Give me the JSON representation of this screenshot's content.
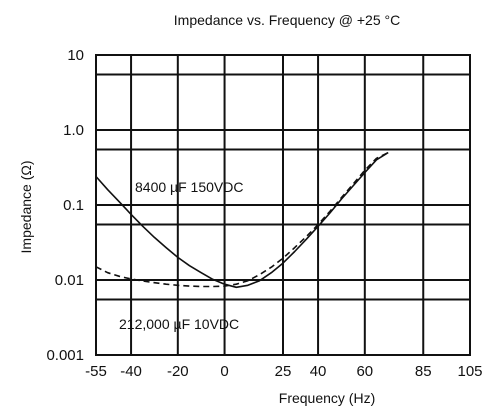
{
  "chart_data": {
    "type": "line",
    "title": "Impedance vs. Frequency @ +25 °C",
    "xlabel": "Frequency (Hz)",
    "ylabel": "Impedance (Ω)",
    "xlim": [
      -55,
      105
    ],
    "ylim": [
      0.001,
      10
    ],
    "y_scale": "log",
    "grid": true,
    "x_ticks": [
      -55,
      -40,
      -20,
      0,
      25,
      40,
      60,
      85,
      105
    ],
    "x_tick_labels": [
      "-55",
      "-40",
      "-20",
      "0",
      "25",
      "40",
      "60",
      "85",
      "105"
    ],
    "x_gridlines": [
      -40,
      -20,
      0,
      25,
      40,
      60,
      85,
      105
    ],
    "y_ticks": [
      0.001,
      0.01,
      0.1,
      1.0,
      10
    ],
    "y_tick_labels": [
      "0.001",
      "0.01",
      "0.1",
      "1.0",
      "10"
    ],
    "y_gridlines": [
      0.001,
      0.0055,
      0.01,
      0.055,
      0.1,
      0.55,
      1.0,
      5.5,
      10
    ],
    "series": [
      {
        "name": "8400 µF 150VDC",
        "style": "solid",
        "x": [
          -55,
          -50,
          -45,
          -40,
          -35,
          -30,
          -25,
          -20,
          -15,
          -10,
          -5,
          0,
          5,
          10,
          15,
          20,
          25,
          30,
          35,
          40,
          45,
          50,
          55,
          60,
          65,
          70
        ],
        "y": [
          0.24,
          0.16,
          0.11,
          0.075,
          0.052,
          0.037,
          0.027,
          0.02,
          0.0155,
          0.0125,
          0.0102,
          0.0088,
          0.008,
          0.0085,
          0.0098,
          0.0125,
          0.0168,
          0.024,
          0.035,
          0.052,
          0.078,
          0.12,
          0.18,
          0.27,
          0.4,
          0.5
        ]
      },
      {
        "name": "212,000 µF 10VDC",
        "style": "dashed",
        "x": [
          -55,
          -50,
          -45,
          -40,
          -35,
          -30,
          -25,
          -20,
          -15,
          -10,
          -5,
          0,
          5,
          10,
          15,
          20,
          25,
          30,
          35,
          40,
          45,
          50,
          55,
          60,
          65,
          70
        ],
        "y": [
          0.015,
          0.0125,
          0.0112,
          0.0103,
          0.0097,
          0.0092,
          0.0088,
          0.0085,
          0.0083,
          0.0082,
          0.0082,
          0.0083,
          0.0088,
          0.0098,
          0.0118,
          0.0148,
          0.0195,
          0.027,
          0.038,
          0.055,
          0.082,
          0.125,
          0.19,
          0.29,
          0.42,
          0.5
        ]
      }
    ],
    "annotations": [
      "8400 µF 150VDC",
      "212,000 µF 10VDC"
    ]
  }
}
